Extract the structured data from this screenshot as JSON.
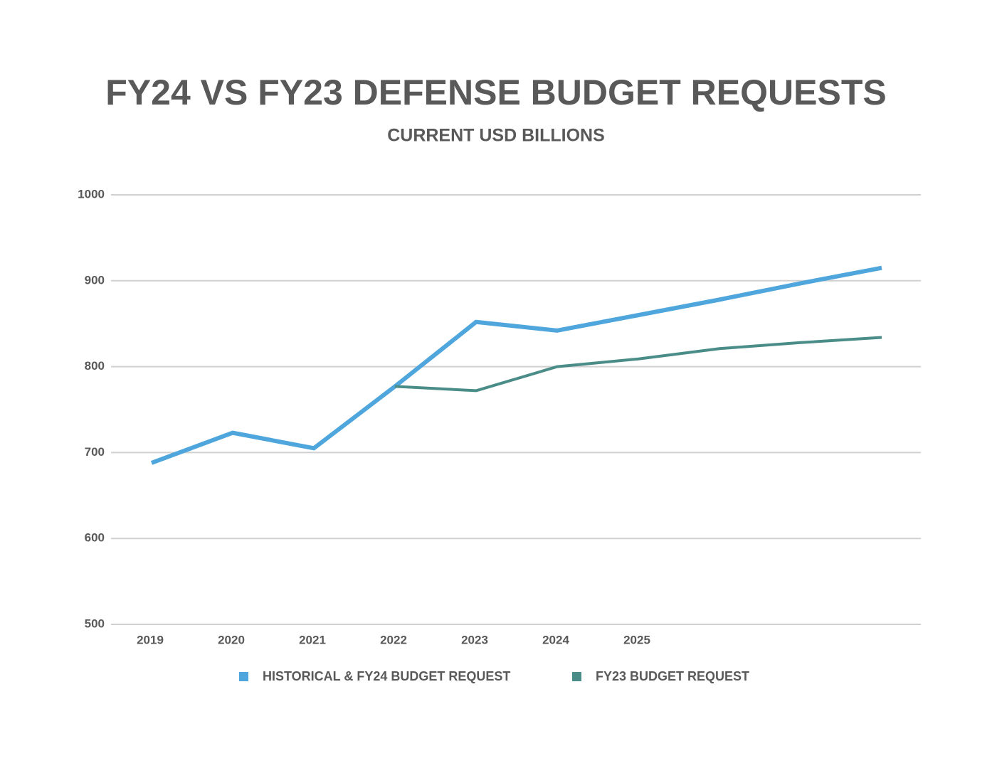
{
  "chart_data": {
    "type": "line",
    "title": "FY24 VS FY23 DEFENSE BUDGET REQUESTS",
    "subtitle": "CURRENT USD BILLIONS",
    "categories": [
      "2019",
      "2020",
      "2021",
      "2022",
      "2023",
      "2024",
      "2025",
      null,
      null,
      null
    ],
    "series": [
      {
        "name": "HISTORICAL & FY24 BUDGET REQUEST",
        "color": "#4ea6dc",
        "values": [
          688,
          723,
          705,
          777,
          852,
          842,
          860,
          878,
          897,
          915
        ]
      },
      {
        "name": "FY23 BUDGET REQUEST",
        "color": "#4a8c87",
        "values": [
          null,
          null,
          null,
          777,
          772,
          800,
          809,
          821,
          828,
          834
        ]
      }
    ],
    "ylim": [
      500,
      1000
    ],
    "yticks": [
      500,
      600,
      700,
      800,
      900,
      1000
    ],
    "grid": true,
    "legend": "bottom"
  }
}
